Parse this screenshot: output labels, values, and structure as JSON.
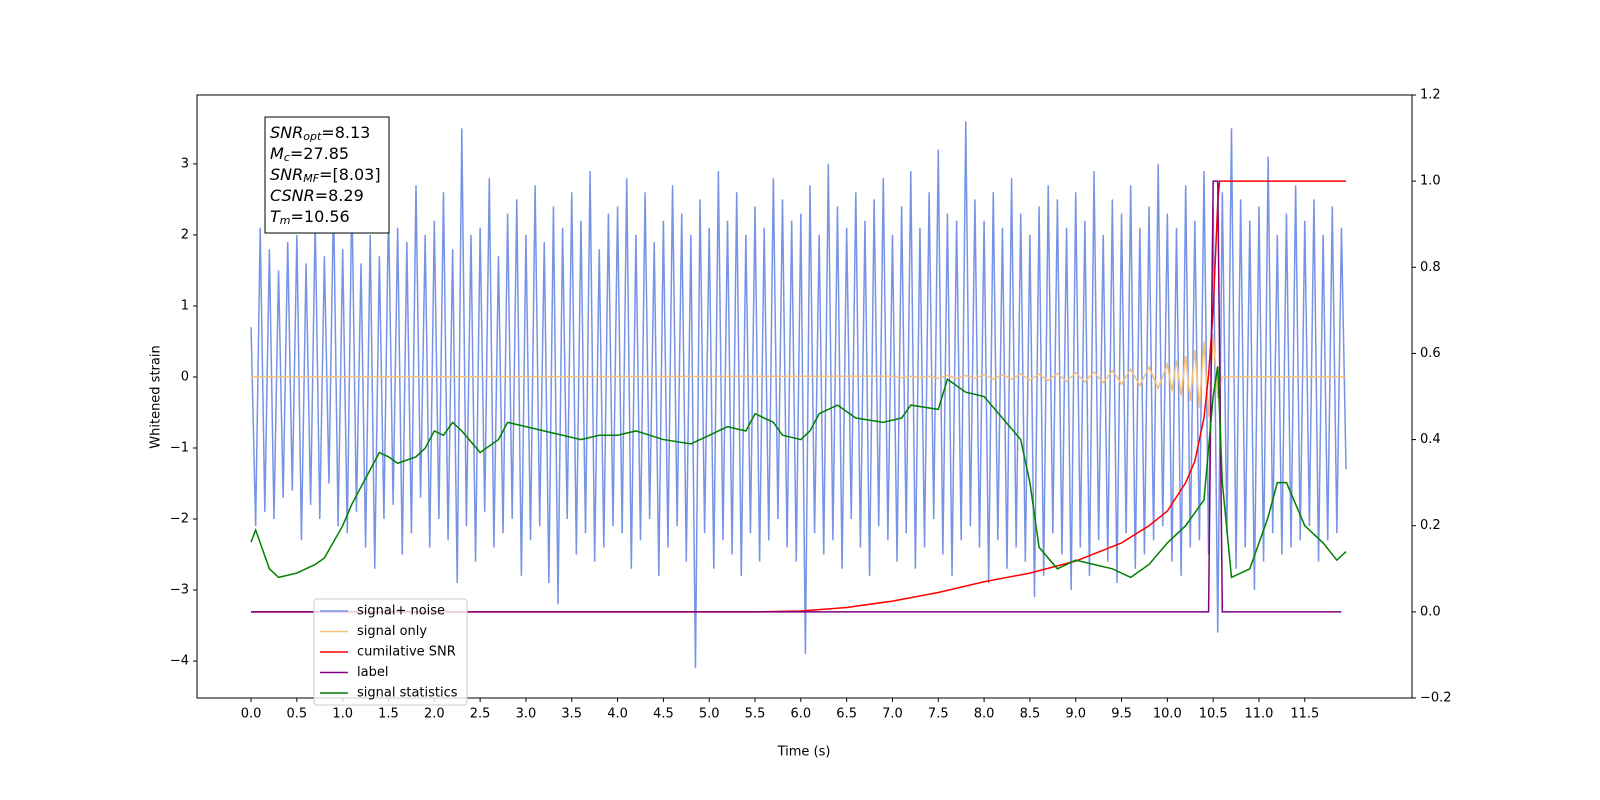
{
  "chart_data": {
    "type": "line",
    "xlabel": "Time (s)",
    "ylabel": "Whitened strain",
    "xlim": [
      -0.59,
      12.67
    ],
    "ylim": [
      -4.52,
      3.97
    ],
    "y2lim": [
      -0.2,
      1.2
    ],
    "xticks": [
      {
        "value": 0,
        "label": "0.0"
      },
      0.5,
      {
        "value": 1,
        "label": "1.0"
      },
      1.5,
      {
        "value": 2,
        "label": "2.0"
      },
      2.5,
      {
        "value": 3,
        "label": "3.0"
      },
      3.5,
      {
        "value": 4,
        "label": "4.0"
      },
      4.5,
      {
        "value": 5,
        "label": "5.0"
      },
      5.5,
      {
        "value": 6,
        "label": "6.0"
      },
      6.5,
      {
        "value": 7,
        "label": "7.0"
      },
      7.5,
      {
        "value": 8,
        "label": "8.0"
      },
      8.5,
      {
        "value": 9,
        "label": "9.0"
      },
      9.5,
      {
        "value": 10,
        "label": "10.0"
      },
      10.5,
      {
        "value": 11,
        "label": "11.0"
      },
      11.5
    ],
    "yticks": [
      {
        "value": -4,
        "label": "−4"
      },
      {
        "value": -3,
        "label": "−3"
      },
      {
        "value": -2,
        "label": "−2"
      },
      {
        "value": -1,
        "label": "−1"
      },
      0,
      1,
      2,
      3
    ],
    "y2ticks": [
      {
        "value": -0.2,
        "label": "−0.2"
      },
      {
        "value": 0,
        "label": "0.0"
      },
      0.2,
      0.4,
      0.6,
      0.8,
      {
        "value": 1,
        "label": "1.0"
      },
      1.2
    ],
    "annotations": [
      {
        "text": "SNR",
        "sub": "opt",
        "value": "=8.13"
      },
      {
        "text": "M",
        "sub": "c",
        "value": "=27.85"
      },
      {
        "text": "SNR",
        "sub": "MF",
        "value": "=[8.03]"
      },
      {
        "text": "CSNR",
        "value": "=8.29"
      },
      {
        "text": "T",
        "sub": "m",
        "value": "=10.56"
      }
    ],
    "series": [
      {
        "name": "signal+ noise",
        "color": "#7793e6",
        "x": [
          0,
          0.05,
          0.1,
          0.15,
          0.2,
          0.25,
          0.3,
          0.35,
          0.4,
          0.45,
          0.5,
          0.55,
          0.6,
          0.65,
          0.7,
          0.75,
          0.8,
          0.85,
          0.9,
          0.95,
          1,
          1.05,
          1.1,
          1.15,
          1.2,
          1.25,
          1.3,
          1.35,
          1.4,
          1.45,
          1.5,
          1.55,
          1.6,
          1.65,
          1.7,
          1.75,
          1.8,
          1.85,
          1.9,
          1.95,
          2,
          2.05,
          2.1,
          2.15,
          2.2,
          2.25,
          2.3,
          2.35,
          2.4,
          2.45,
          2.5,
          2.55,
          2.6,
          2.65,
          2.7,
          2.75,
          2.8,
          2.85,
          2.9,
          2.95,
          3,
          3.05,
          3.1,
          3.15,
          3.2,
          3.25,
          3.3,
          3.35,
          3.4,
          3.45,
          3.5,
          3.55,
          3.6,
          3.65,
          3.7,
          3.75,
          3.8,
          3.85,
          3.9,
          3.95,
          4,
          4.05,
          4.1,
          4.15,
          4.2,
          4.25,
          4.3,
          4.35,
          4.4,
          4.45,
          4.5,
          4.55,
          4.6,
          4.65,
          4.7,
          4.75,
          4.8,
          4.85,
          4.9,
          4.95,
          5,
          5.05,
          5.1,
          5.15,
          5.2,
          5.25,
          5.3,
          5.35,
          5.4,
          5.45,
          5.5,
          5.55,
          5.6,
          5.65,
          5.7,
          5.75,
          5.8,
          5.85,
          5.9,
          5.95,
          6,
          6.05,
          6.1,
          6.15,
          6.2,
          6.25,
          6.3,
          6.35,
          6.4,
          6.45,
          6.5,
          6.55,
          6.6,
          6.65,
          6.7,
          6.75,
          6.8,
          6.85,
          6.9,
          6.95,
          7,
          7.05,
          7.1,
          7.15,
          7.2,
          7.25,
          7.3,
          7.35,
          7.4,
          7.45,
          7.5,
          7.55,
          7.6,
          7.65,
          7.7,
          7.75,
          7.8,
          7.85,
          7.9,
          7.95,
          8,
          8.05,
          8.1,
          8.15,
          8.2,
          8.25,
          8.3,
          8.35,
          8.4,
          8.45,
          8.5,
          8.55,
          8.6,
          8.65,
          8.7,
          8.75,
          8.8,
          8.85,
          8.9,
          8.95,
          9,
          9.05,
          9.1,
          9.15,
          9.2,
          9.25,
          9.3,
          9.35,
          9.4,
          9.45,
          9.5,
          9.55,
          9.6,
          9.65,
          9.7,
          9.75,
          9.8,
          9.85,
          9.9,
          9.95,
          10,
          10.05,
          10.1,
          10.15,
          10.2,
          10.25,
          10.3,
          10.35,
          10.4,
          10.45,
          10.5,
          10.55,
          10.6,
          10.65,
          10.7,
          10.75,
          10.8,
          10.85,
          10.9,
          10.95,
          11,
          11.05,
          11.1,
          11.15,
          11.2,
          11.25,
          11.3,
          11.35,
          11.4,
          11.45,
          11.5,
          11.55,
          11.6,
          11.65,
          11.7,
          11.75,
          11.8,
          11.85,
          11.9,
          11.95
        ],
        "values": [
          0.7,
          -2.1,
          2.1,
          -1.9,
          1.8,
          -2.0,
          1.5,
          -1.7,
          1.9,
          -1.6,
          2.0,
          -2.3,
          1.6,
          -1.8,
          2.2,
          -2.0,
          1.7,
          -1.5,
          2.5,
          -2.1,
          1.8,
          -2.2,
          2.6,
          -1.9,
          1.6,
          -2.4,
          2.0,
          -2.7,
          1.7,
          -2.0,
          2.4,
          -1.8,
          2.1,
          -2.5,
          1.9,
          -2.2,
          2.7,
          -1.7,
          2.0,
          -2.4,
          2.2,
          -2.0,
          2.6,
          -2.3,
          1.8,
          -2.9,
          3.5,
          -2.1,
          2.0,
          -2.6,
          2.1,
          -1.9,
          2.8,
          -2.4,
          1.7,
          -2.2,
          2.3,
          -2.0,
          2.5,
          -2.8,
          2.0,
          -2.3,
          2.7,
          -2.1,
          1.9,
          -2.9,
          2.4,
          -3.2,
          2.1,
          -2.0,
          2.6,
          -2.5,
          2.2,
          -2.2,
          2.9,
          -2.6,
          1.8,
          -2.4,
          2.3,
          -2.1,
          2.4,
          -2.2,
          2.8,
          -2.7,
          2.0,
          -2.3,
          2.6,
          -2.0,
          1.9,
          -2.8,
          2.2,
          -2.4,
          2.7,
          -2.1,
          2.3,
          -2.6,
          2.0,
          -4.1,
          2.5,
          -2.2,
          2.1,
          -2.7,
          2.9,
          -2.3,
          2.2,
          -2.5,
          2.6,
          -2.8,
          2.0,
          -2.2,
          2.4,
          -2.6,
          2.1,
          -2.3,
          2.8,
          -2.0,
          2.5,
          -2.4,
          2.2,
          -2.6,
          2.3,
          -3.9,
          2.7,
          -2.2,
          2.0,
          -2.5,
          3.0,
          -2.3,
          2.4,
          -2.7,
          2.1,
          -2.0,
          2.6,
          -2.4,
          2.2,
          -2.8,
          2.5,
          -2.1,
          2.8,
          -2.3,
          2.0,
          -2.6,
          2.4,
          -2.2,
          2.9,
          -2.7,
          2.1,
          -2.4,
          2.6,
          -2.0,
          3.2,
          -2.5,
          2.3,
          -2.8,
          2.2,
          -2.3,
          3.6,
          -2.1,
          2.5,
          -2.4,
          2.2,
          -2.9,
          2.6,
          -2.3,
          2.1,
          -2.7,
          2.8,
          -2.4,
          2.3,
          -2.6,
          2.0,
          -3.1,
          2.4,
          -2.8,
          2.7,
          -2.2,
          2.5,
          -2.5,
          2.1,
          -3.0,
          2.6,
          -2.4,
          2.2,
          -2.8,
          2.9,
          -2.3,
          2.0,
          -2.6,
          2.5,
          -2.9,
          2.3,
          -2.2,
          2.7,
          -2.7,
          2.1,
          -2.5,
          2.4,
          -2.3,
          3.0,
          -2.1,
          2.3,
          -2.6,
          2.1,
          -2.8,
          2.7,
          -2.4,
          2.2,
          -2.3,
          2.9,
          -2.5,
          2.4,
          -3.6,
          2.6,
          -2.2,
          3.5,
          -2.7,
          2.5,
          -2.4,
          2.2,
          -3.0,
          2.4,
          -2.6,
          3.1,
          -2.2,
          2.0,
          -2.5,
          2.3,
          -2.4,
          2.7,
          -2.3,
          2.2,
          -2.1,
          2.5,
          -2.6,
          2.0,
          -2.3,
          2.4,
          -2.2,
          2.1,
          -1.3
        ]
      },
      {
        "name": "signal only",
        "color": "#f5c07a",
        "x": [
          0,
          7.0,
          7.1,
          7.2,
          7.3,
          7.4,
          7.5,
          7.6,
          7.7,
          7.8,
          7.9,
          8.0,
          8.1,
          8.2,
          8.3,
          8.4,
          8.5,
          8.6,
          8.7,
          8.8,
          8.9,
          9.0,
          9.1,
          9.2,
          9.3,
          9.4,
          9.5,
          9.6,
          9.7,
          9.8,
          9.9,
          10.0,
          10.05,
          10.1,
          10.15,
          10.2,
          10.25,
          10.3,
          10.35,
          10.4,
          10.45,
          10.5,
          10.55,
          10.6,
          11.95
        ],
        "values": [
          0,
          0.01,
          -0.01,
          0.01,
          -0.01,
          0.01,
          -0.02,
          0.02,
          -0.02,
          0.02,
          -0.02,
          0.03,
          -0.03,
          0.03,
          -0.03,
          0.04,
          -0.04,
          0.04,
          -0.05,
          0.05,
          -0.06,
          0.06,
          -0.07,
          0.07,
          -0.08,
          0.09,
          -0.1,
          0.11,
          -0.12,
          0.14,
          -0.16,
          0.18,
          -0.2,
          0.23,
          -0.26,
          0.3,
          -0.34,
          0.38,
          -0.43,
          0.5,
          -0.56,
          0.6,
          -0.3,
          0,
          0
        ]
      },
      {
        "name": "cumilative SNR",
        "color": "#ff0000",
        "axis": "y2",
        "x": [
          0,
          5.5,
          6.0,
          6.5,
          7.0,
          7.5,
          8.0,
          8.5,
          9.0,
          9.5,
          9.8,
          10.0,
          10.2,
          10.3,
          10.4,
          10.45,
          10.5,
          10.55,
          10.57,
          11.95
        ],
        "values": [
          0,
          0,
          0.002,
          0.01,
          0.025,
          0.045,
          0.07,
          0.09,
          0.118,
          0.16,
          0.2,
          0.234,
          0.3,
          0.35,
          0.45,
          0.55,
          0.7,
          0.95,
          1.0,
          1.0
        ]
      },
      {
        "name": "label",
        "color": "#800080",
        "axis": "y2",
        "x": [
          0,
          10.45,
          10.5,
          10.55,
          10.6,
          11.9
        ],
        "values": [
          0,
          0,
          1,
          1,
          0,
          0
        ]
      },
      {
        "name": "signal statistics",
        "color": "#008000",
        "axis": "y2",
        "x": [
          0,
          0.05,
          0.2,
          0.3,
          0.5,
          0.7,
          0.8,
          1.0,
          1.1,
          1.3,
          1.4,
          1.5,
          1.6,
          1.8,
          1.9,
          2.0,
          2.1,
          2.2,
          2.3,
          2.5,
          2.7,
          2.8,
          3.0,
          3.2,
          3.4,
          3.6,
          3.8,
          4.0,
          4.2,
          4.5,
          4.8,
          5.0,
          5.2,
          5.4,
          5.5,
          5.7,
          5.8,
          6.0,
          6.1,
          6.2,
          6.4,
          6.6,
          6.9,
          7.1,
          7.2,
          7.5,
          7.6,
          7.8,
          8.0,
          8.2,
          8.4,
          8.5,
          8.6,
          8.8,
          9.0,
          9.2,
          9.4,
          9.6,
          9.8,
          10.0,
          10.2,
          10.4,
          10.5,
          10.55,
          10.6,
          10.7,
          10.9,
          11.1,
          11.2,
          11.3,
          11.4,
          11.5,
          11.7,
          11.85,
          11.95
        ],
        "values": [
          0.162,
          0.19,
          0.1,
          0.08,
          0.09,
          0.11,
          0.125,
          0.2,
          0.25,
          0.33,
          0.37,
          0.36,
          0.345,
          0.36,
          0.38,
          0.42,
          0.41,
          0.44,
          0.42,
          0.37,
          0.4,
          0.44,
          0.43,
          0.42,
          0.41,
          0.4,
          0.41,
          0.41,
          0.42,
          0.4,
          0.39,
          0.41,
          0.43,
          0.42,
          0.46,
          0.44,
          0.41,
          0.4,
          0.42,
          0.46,
          0.48,
          0.45,
          0.44,
          0.45,
          0.48,
          0.47,
          0.54,
          0.51,
          0.5,
          0.45,
          0.4,
          0.3,
          0.15,
          0.1,
          0.12,
          0.11,
          0.1,
          0.08,
          0.11,
          0.16,
          0.2,
          0.26,
          0.5,
          0.57,
          0.3,
          0.08,
          0.1,
          0.22,
          0.3,
          0.3,
          0.25,
          0.2,
          0.16,
          0.12,
          0.14
        ]
      }
    ]
  }
}
